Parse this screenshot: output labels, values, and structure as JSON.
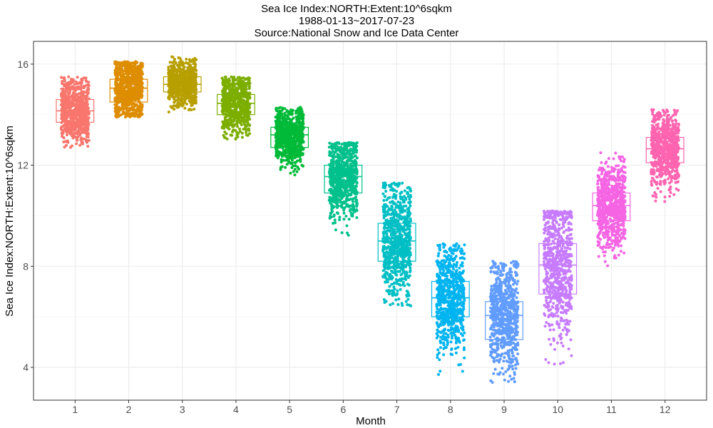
{
  "chart_data": {
    "type": "scatter",
    "subtype": "jitter-with-boxplot",
    "title_lines": [
      "Sea Ice Index:NORTH:Extent:10^6sqkm",
      "1988-01-13~2017-07-23",
      "Source:National Snow and Ice Data Center"
    ],
    "xlabel": "Month",
    "ylabel": "Sea Ice Index:NORTH:Extent:10^6sqkm",
    "ylim": [
      2.7,
      16.9
    ],
    "yticks": [
      4,
      8,
      12,
      16
    ],
    "grid": true,
    "legend": "none",
    "categories": [
      "1",
      "2",
      "3",
      "4",
      "5",
      "6",
      "7",
      "8",
      "9",
      "10",
      "11",
      "12"
    ],
    "colors": [
      "#F8766D",
      "#DE8C00",
      "#B79F00",
      "#7CAE00",
      "#00BA38",
      "#00C08B",
      "#00BFC4",
      "#00B4F0",
      "#619CFF",
      "#C77CFF",
      "#F564E3",
      "#FF64B0"
    ],
    "boxes": [
      {
        "month": "1",
        "min": 12.7,
        "q1": 13.7,
        "median": 14.15,
        "q3": 14.6,
        "max": 15.5
      },
      {
        "month": "2",
        "min": 13.9,
        "q1": 14.5,
        "median": 15.05,
        "q3": 15.4,
        "max": 16.1
      },
      {
        "month": "3",
        "min": 14.1,
        "q1": 14.9,
        "median": 15.2,
        "q3": 15.5,
        "max": 16.3
      },
      {
        "month": "4",
        "min": 13.0,
        "q1": 14.0,
        "median": 14.45,
        "q3": 14.8,
        "max": 15.5
      },
      {
        "month": "5",
        "min": 11.1,
        "q1": 12.7,
        "median": 13.2,
        "q3": 13.5,
        "max": 14.3
      },
      {
        "month": "6",
        "min": 9.2,
        "q1": 10.9,
        "median": 11.55,
        "q3": 12.0,
        "max": 12.9
      },
      {
        "month": "7",
        "min": 6.4,
        "q1": 8.2,
        "median": 9.0,
        "q3": 9.7,
        "max": 11.3
      },
      {
        "month": "8",
        "min": 3.6,
        "q1": 6.0,
        "median": 6.75,
        "q3": 7.4,
        "max": 8.9
      },
      {
        "month": "9",
        "min": 3.4,
        "q1": 5.1,
        "median": 6.05,
        "q3": 6.6,
        "max": 8.2
      },
      {
        "month": "10",
        "min": 4.1,
        "q1": 6.9,
        "median": 8.05,
        "q3": 8.9,
        "max": 10.2
      },
      {
        "month": "11",
        "min": 7.2,
        "q1": 9.8,
        "median": 10.4,
        "q3": 10.9,
        "max": 12.5
      },
      {
        "month": "12",
        "min": 10.2,
        "q1": 12.1,
        "median": 12.65,
        "q3": 13.1,
        "max": 14.2
      }
    ]
  }
}
